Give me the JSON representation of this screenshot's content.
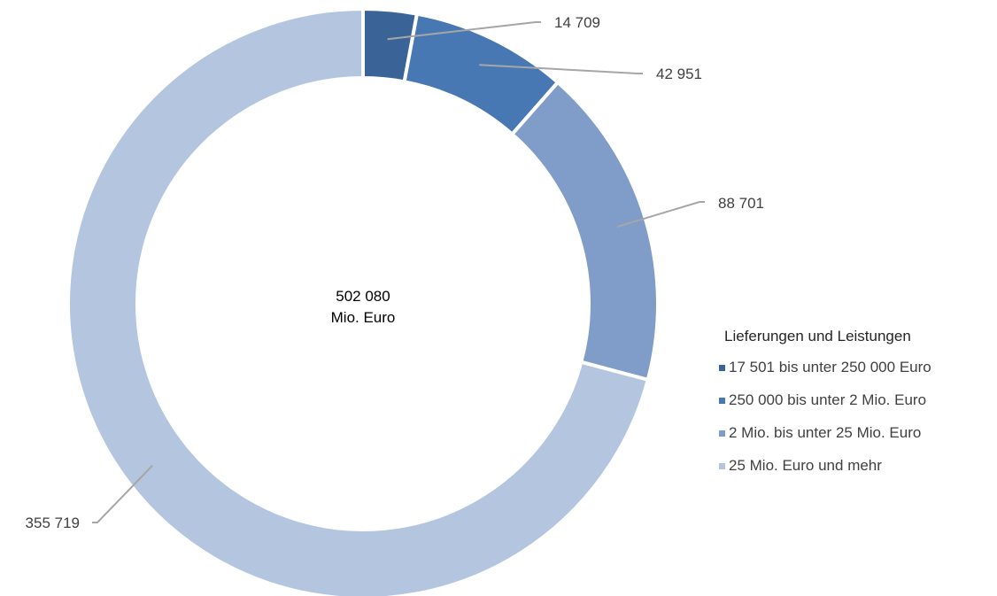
{
  "chart_data": {
    "type": "pie",
    "title": "",
    "center_value": "502 080",
    "center_unit": "Mio. Euro",
    "categories": [
      "17 501 bis unter 250 000 Euro",
      "250 000 bis unter 2 Mio. Euro",
      "2 Mio. bis unter 25 Mio. Euro",
      "25 Mio. Euro und mehr"
    ],
    "values": [
      14709,
      42951,
      88701,
      355719
    ],
    "value_labels": [
      "14 709",
      "42 951",
      "88 701",
      "355 719"
    ],
    "colors": [
      "#3a6498",
      "#4878b4",
      "#7f9dc8",
      "#b4c5df"
    ],
    "legend": {
      "title": "Lieferungen und Leistungen",
      "position": "right"
    }
  }
}
